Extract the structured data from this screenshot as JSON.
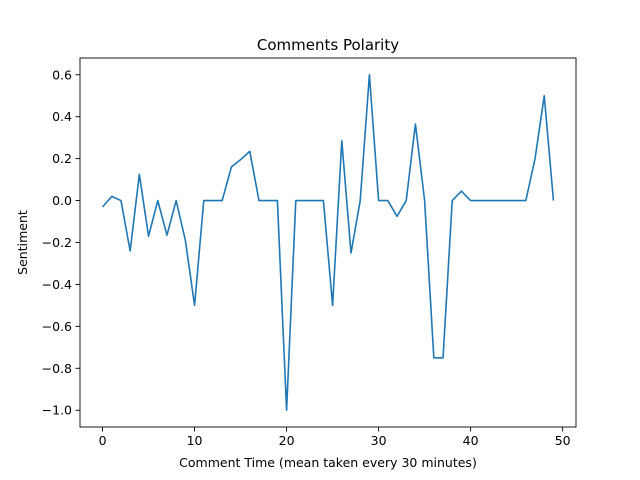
{
  "chart_data": {
    "type": "line",
    "title": "Comments Polarity",
    "xlabel": "Comment Time (mean taken every 30 minutes)",
    "ylabel": "Sentiment",
    "xlim": [
      -2.45,
      51.45
    ],
    "ylim": [
      -1.08,
      0.68
    ],
    "xticks": [
      0,
      10,
      20,
      30,
      40,
      50
    ],
    "xtick_labels": [
      "0",
      "10",
      "20",
      "30",
      "40",
      "50"
    ],
    "yticks": [
      -1.0,
      -0.8,
      -0.6,
      -0.4,
      -0.2,
      0.0,
      0.2,
      0.4,
      0.6
    ],
    "ytick_labels": [
      "−1.0",
      "−0.8",
      "−0.6",
      "−0.4",
      "−0.2",
      "0.0",
      "0.2",
      "0.4",
      "0.6"
    ],
    "grid": false,
    "line_color": "#1f77b4",
    "series": [
      {
        "name": "",
        "x": [
          0,
          1,
          2,
          3,
          4,
          5,
          6,
          7,
          8,
          9,
          10,
          11,
          12,
          13,
          14,
          15,
          16,
          17,
          18,
          19,
          20,
          21,
          22,
          23,
          24,
          25,
          26,
          27,
          28,
          29,
          30,
          31,
          32,
          33,
          34,
          35,
          36,
          37,
          38,
          39,
          40,
          41,
          42,
          43,
          44,
          45,
          46,
          47,
          48,
          49
        ],
        "y": [
          -0.03,
          0.02,
          0.0,
          -0.24,
          0.125,
          -0.17,
          0.0,
          -0.165,
          0.0,
          -0.19,
          -0.5,
          0.0,
          0.0,
          0.0,
          0.16,
          0.195,
          0.235,
          0.0,
          0.0,
          0.0,
          -1.0,
          0.0,
          0.0,
          0.0,
          0.0,
          -0.5,
          0.285,
          -0.25,
          0.0,
          0.6,
          0.0,
          0.0,
          -0.075,
          0.0,
          0.365,
          0.0,
          -0.75,
          -0.75,
          0.0,
          0.045,
          0.0,
          0.0,
          0.0,
          0.0,
          0.0,
          0.0,
          0.0,
          0.2,
          0.5,
          0.0
        ]
      }
    ]
  }
}
